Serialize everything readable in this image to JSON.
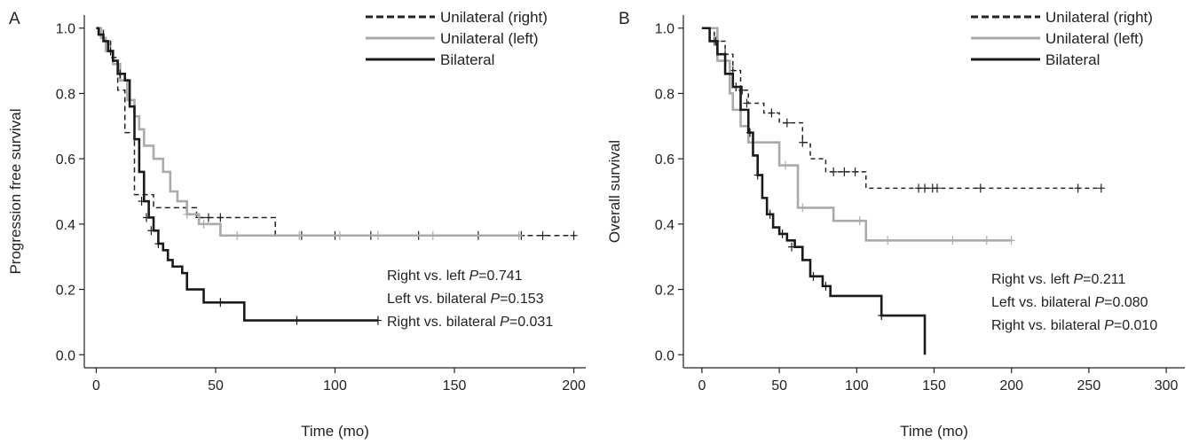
{
  "chart_data": [
    {
      "panel_label": "A",
      "type": "line",
      "subtype": "kaplan-meier",
      "xlabel": "Time (mo)",
      "ylabel": "Progression free survival",
      "xlim": [
        -5,
        205
      ],
      "ylim": [
        -0.04,
        1.04
      ],
      "x_ticks": [
        "0",
        "50",
        "100",
        "150",
        "200"
      ],
      "y_ticks": [
        "0.0",
        "0.2",
        "0.4",
        "0.6",
        "0.8",
        "1.0"
      ],
      "grid": false,
      "legend_position": "top-right",
      "annotations": [
        {
          "prefix": "Right vs. left ",
          "p": "P",
          "value": "=0.741"
        },
        {
          "prefix": "Left vs. bilateral ",
          "p": "P",
          "value": "=0.153"
        },
        {
          "prefix": "Right vs. bilateral ",
          "p": "P",
          "value": "=0.031"
        }
      ],
      "series": [
        {
          "name": "Unilateral (right)",
          "color": "#222222",
          "dash": "6,4",
          "stroke": 1.5,
          "x": [
            0,
            3,
            6,
            9,
            12,
            16,
            24,
            30,
            35,
            42,
            50,
            60,
            75,
            200
          ],
          "y": [
            1.0,
            0.96,
            0.91,
            0.81,
            0.68,
            0.49,
            0.45,
            0.45,
            0.45,
            0.42,
            0.42,
            0.42,
            0.365,
            0.365
          ],
          "censor_x": [
            43,
            47,
            52,
            86,
            100,
            115,
            135,
            160,
            178,
            187,
            200
          ],
          "censor_y": [
            0.42,
            0.42,
            0.42,
            0.365,
            0.365,
            0.365,
            0.365,
            0.365,
            0.365,
            0.365,
            0.365
          ]
        },
        {
          "name": "Unilateral (left)",
          "color": "#aaaaaa",
          "dash": "",
          "stroke": 2.6,
          "x": [
            0,
            2,
            4,
            7,
            10,
            13,
            16,
            18,
            20,
            24,
            28,
            31,
            34,
            38,
            43,
            52,
            60,
            100,
            178
          ],
          "y": [
            1.0,
            0.97,
            0.93,
            0.89,
            0.84,
            0.78,
            0.73,
            0.69,
            0.64,
            0.6,
            0.56,
            0.5,
            0.47,
            0.43,
            0.4,
            0.365,
            0.365,
            0.365,
            0.365
          ],
          "censor_x": [
            38,
            45,
            59,
            85,
            102,
            118,
            141,
            177
          ],
          "censor_y": [
            0.43,
            0.4,
            0.365,
            0.365,
            0.365,
            0.365,
            0.365,
            0.365
          ]
        },
        {
          "name": "Bilateral",
          "color": "#1a1a1a",
          "dash": "",
          "stroke": 2.6,
          "x": [
            0,
            1,
            3,
            5,
            7,
            9,
            12,
            14,
            16,
            18,
            20,
            22,
            24,
            26,
            28,
            30,
            32,
            36,
            38,
            45,
            52,
            62,
            118
          ],
          "y": [
            1.0,
            0.98,
            0.96,
            0.93,
            0.9,
            0.86,
            0.84,
            0.76,
            0.66,
            0.56,
            0.47,
            0.42,
            0.38,
            0.34,
            0.32,
            0.29,
            0.27,
            0.25,
            0.2,
            0.16,
            0.16,
            0.105,
            0.105
          ],
          "censor_x": [
            6,
            10,
            19,
            21,
            23,
            26,
            52,
            84,
            118
          ],
          "censor_y": [
            0.93,
            0.86,
            0.47,
            0.42,
            0.38,
            0.34,
            0.16,
            0.105,
            0.105
          ]
        }
      ]
    },
    {
      "panel_label": "B",
      "type": "line",
      "subtype": "kaplan-meier",
      "xlabel": "Time (mo)",
      "ylabel": "Overall survival",
      "xlim": [
        -12,
        312
      ],
      "ylim": [
        -0.04,
        1.04
      ],
      "x_ticks": [
        "0",
        "50",
        "100",
        "150",
        "200",
        "250",
        "300"
      ],
      "y_ticks": [
        "0.0",
        "0.2",
        "0.4",
        "0.6",
        "0.8",
        "1.0"
      ],
      "grid": false,
      "legend_position": "top-right",
      "annotations": [
        {
          "prefix": "Right vs. left ",
          "p": "P",
          "value": "=0.211"
        },
        {
          "prefix": "Left vs. bilateral ",
          "p": "P",
          "value": "=0.080"
        },
        {
          "prefix": "Right vs. bilateral ",
          "p": "P",
          "value": "=0.010"
        }
      ],
      "series": [
        {
          "name": "Unilateral (right)",
          "color": "#222222",
          "dash": "5,4",
          "stroke": 1.5,
          "x": [
            0,
            8,
            15,
            20,
            25,
            30,
            40,
            50,
            65,
            70,
            80,
            90,
            106,
            258
          ],
          "y": [
            1.0,
            0.96,
            0.92,
            0.87,
            0.81,
            0.77,
            0.74,
            0.71,
            0.65,
            0.6,
            0.56,
            0.56,
            0.51,
            0.51
          ],
          "censor_x": [
            9,
            15,
            20,
            26,
            29,
            45,
            55,
            65,
            85,
            92,
            99,
            140,
            144,
            149,
            152,
            180,
            243,
            258
          ],
          "censor_y": [
            0.96,
            0.92,
            0.87,
            0.81,
            0.77,
            0.74,
            0.71,
            0.65,
            0.56,
            0.56,
            0.56,
            0.51,
            0.51,
            0.51,
            0.51,
            0.51,
            0.51,
            0.51
          ]
        },
        {
          "name": "Unilateral (left)",
          "color": "#aaaaaa",
          "dash": "",
          "stroke": 2.6,
          "x": [
            0,
            10,
            18,
            20,
            25,
            30,
            40,
            50,
            60,
            62,
            75,
            85,
            106,
            200
          ],
          "y": [
            1.0,
            0.9,
            0.8,
            0.75,
            0.7,
            0.65,
            0.65,
            0.58,
            0.58,
            0.45,
            0.45,
            0.41,
            0.35,
            0.35
          ],
          "censor_x": [
            54,
            65,
            102,
            120,
            162,
            184,
            200
          ],
          "censor_y": [
            0.58,
            0.45,
            0.41,
            0.35,
            0.35,
            0.35,
            0.35
          ]
        },
        {
          "name": "Bilateral",
          "color": "#1a1a1a",
          "dash": "",
          "stroke": 2.6,
          "x": [
            0,
            5,
            10,
            15,
            20,
            25,
            30,
            33,
            36,
            39,
            42,
            46,
            50,
            55,
            60,
            65,
            70,
            78,
            83,
            100,
            116,
            144,
            144
          ],
          "y": [
            1.0,
            0.96,
            0.92,
            0.86,
            0.82,
            0.75,
            0.68,
            0.61,
            0.55,
            0.48,
            0.43,
            0.39,
            0.37,
            0.35,
            0.33,
            0.29,
            0.24,
            0.21,
            0.18,
            0.18,
            0.12,
            0.12,
            0.0
          ],
          "censor_x": [
            8,
            22,
            31,
            36,
            44,
            52,
            58,
            72,
            80,
            116
          ],
          "censor_y": [
            0.96,
            0.82,
            0.68,
            0.55,
            0.43,
            0.37,
            0.33,
            0.24,
            0.21,
            0.12
          ]
        }
      ]
    }
  ]
}
